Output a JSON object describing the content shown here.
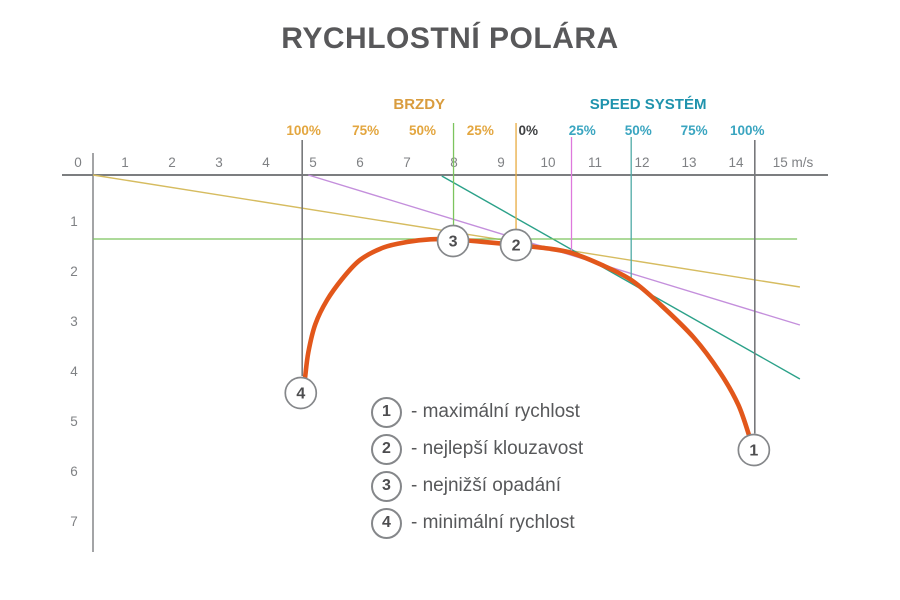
{
  "title": "RYCHLOSTNÍ POLÁRA",
  "colors": {
    "title": "#58585a",
    "axis_line": "#7c7e80",
    "tick_text": "#7f8184",
    "curve": "#e2571b",
    "brakes_title": "#d99c3e",
    "brakes_percent": "#e3a63f",
    "speed_title": "#1f93ad",
    "speed_percent": "#3aa5c0",
    "zero_percent": "#3f4143",
    "marker_gray": "#77787b",
    "marker_green": "#7cc45e",
    "marker_orange": "#e8ab41",
    "marker_magenta": "#de79dc",
    "marker_teal": "#4faaa6",
    "tangent_yellow": "#d6bc60",
    "tangent_purple": "#c48fdc",
    "tangent_teal": "#2ba189",
    "min_sink_green": "#7cc45e",
    "circle_stroke": "#85878a",
    "circle_number": "#4d4d4f",
    "legend_text": "#57585a"
  },
  "chart_data": {
    "type": "line",
    "title": "RYCHLOSTNÍ POLÁRA",
    "x_unit": "m/s",
    "xlim": [
      0,
      15.7
    ],
    "ylim": [
      0,
      7.5
    ],
    "x_ticks": [
      "0",
      "1",
      "2",
      "3",
      "4",
      "5",
      "6",
      "7",
      "8",
      "9",
      "10",
      "11",
      "12",
      "13",
      "14",
      "15 m/s"
    ],
    "y_ticks": [
      "1",
      "2",
      "3",
      "4",
      "5",
      "6",
      "7"
    ],
    "grid": false,
    "groups": {
      "brakes": {
        "label": "BRZDY",
        "label_x": 7.26,
        "percents": [
          {
            "text": "100%",
            "x": 4.8
          },
          {
            "text": "75%",
            "x": 6.12
          },
          {
            "text": "50%",
            "x": 7.33
          },
          {
            "text": "25%",
            "x": 8.56
          }
        ]
      },
      "zero": {
        "text": "0%",
        "x": 9.58
      },
      "speed": {
        "label": "SPEED SYSTÉM",
        "label_x": 12.13,
        "percents": [
          {
            "text": "25%",
            "x": 10.73
          },
          {
            "text": "50%",
            "x": 11.92
          },
          {
            "text": "75%",
            "x": 13.11
          },
          {
            "text": "100%",
            "x": 14.24
          }
        ]
      }
    },
    "polar_curve": [
      [
        4.83,
        4.06
      ],
      [
        4.9,
        3.55
      ],
      [
        5.05,
        2.98
      ],
      [
        5.3,
        2.5
      ],
      [
        5.62,
        2.08
      ],
      [
        6.0,
        1.7
      ],
      [
        6.5,
        1.45
      ],
      [
        7.0,
        1.34
      ],
      [
        7.5,
        1.285
      ],
      [
        8.0,
        1.29
      ],
      [
        8.6,
        1.335
      ],
      [
        9.32,
        1.4
      ],
      [
        10.0,
        1.47
      ],
      [
        10.5,
        1.56
      ],
      [
        11.1,
        1.78
      ],
      [
        11.77,
        2.1
      ],
      [
        12.4,
        2.6
      ],
      [
        13.1,
        3.25
      ],
      [
        13.66,
        3.95
      ],
      [
        14.05,
        4.6
      ],
      [
        14.3,
        5.27
      ]
    ],
    "marker_lines": [
      {
        "name": "min-speed-line",
        "x": 4.77,
        "top": -0.7,
        "bottom": 4.02,
        "colorKey": "marker_gray",
        "width": 1.6
      },
      {
        "name": "min-sink-line",
        "x": 7.99,
        "top": -1.04,
        "bottom": 1.28,
        "colorKey": "marker_green",
        "width": 1.3
      },
      {
        "name": "trim-speed-line",
        "x": 9.32,
        "top": -1.04,
        "bottom": 1.18,
        "colorKey": "marker_orange",
        "width": 1.3
      },
      {
        "name": "speed-25-line",
        "x": 10.5,
        "top": -0.76,
        "bottom": 1.55,
        "colorKey": "marker_magenta",
        "width": 1.3
      },
      {
        "name": "speed-50-line",
        "x": 11.77,
        "top": -0.76,
        "bottom": 2.09,
        "colorKey": "marker_teal",
        "width": 1.3
      },
      {
        "name": "max-speed-line",
        "x": 14.4,
        "top": -0.7,
        "bottom": 5.17,
        "colorKey": "marker_gray",
        "width": 1.6
      }
    ],
    "tangent_lines": [
      {
        "name": "glide-line-trim",
        "x1": 0.32,
        "y1": 0.0,
        "x2": 15.36,
        "y2": 2.24,
        "colorKey": "tangent_yellow"
      },
      {
        "name": "glide-line-25-speed",
        "x1": 4.9,
        "y1": 0.0,
        "x2": 15.36,
        "y2": 3.0,
        "colorKey": "tangent_purple"
      },
      {
        "name": "glide-line-50-speed",
        "x1": 7.74,
        "y1": 0.02,
        "x2": 15.36,
        "y2": 4.08,
        "colorKey": "tangent_teal"
      }
    ],
    "min_sink_horizontal": {
      "y": 1.28,
      "x1": 0.32,
      "x2": 15.3,
      "colorKey": "min_sink_green"
    },
    "points": [
      {
        "n": "1",
        "x": 14.38,
        "y": 5.5,
        "label": "- maximální rychlost"
      },
      {
        "n": "2",
        "x": 9.32,
        "y": 1.4,
        "label": "- nejlepší klouzavost"
      },
      {
        "n": "3",
        "x": 7.98,
        "y": 1.32,
        "label": "- nejnižší opadání"
      },
      {
        "n": "4",
        "x": 4.74,
        "y": 4.36,
        "label": "- minimální rychlost"
      }
    ]
  }
}
